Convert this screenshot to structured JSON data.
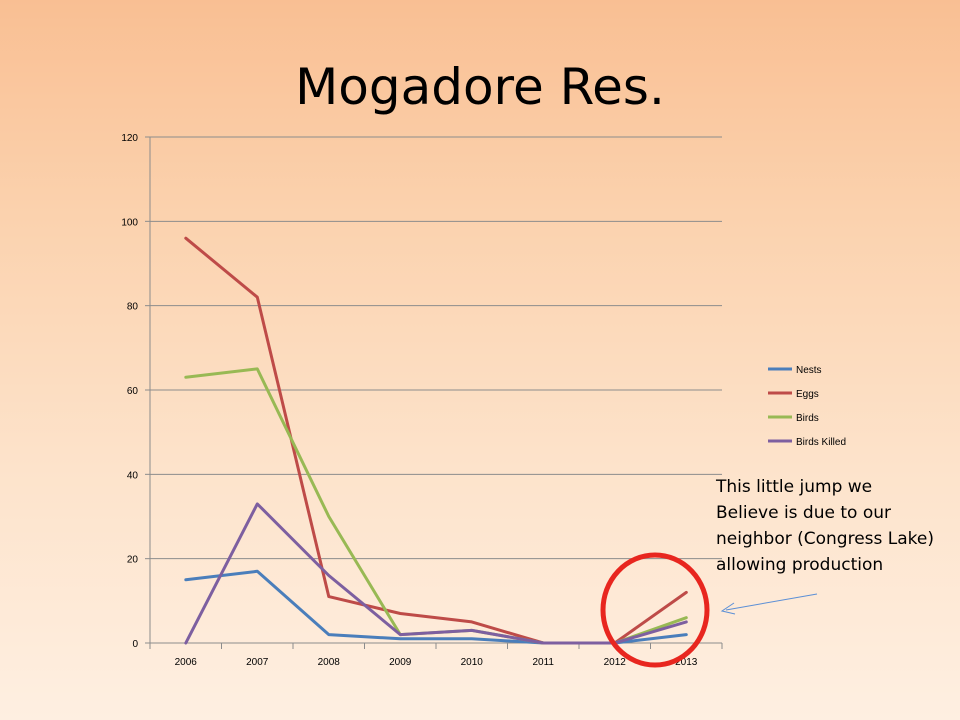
{
  "slide": {
    "title": "Mogadore Res.",
    "annotation_lines": [
      "This little jump we",
      "Believe is due to our",
      "neighbor (Congress Lake)",
      "allowing production"
    ]
  },
  "colors": {
    "Nests": "#4a7ebb",
    "Eggs": "#be4b48",
    "Birds": "#98b954",
    "Birds Killed": "#7d5fa0",
    "highlight_circle": "#e8261f",
    "arrow": "#5b8fd6",
    "gridline": "#8c8c8c"
  },
  "chart_data": {
    "type": "line",
    "title": "",
    "xlabel": "",
    "ylabel": "",
    "categories": [
      "2006",
      "2007",
      "2008",
      "2009",
      "2010",
      "2011",
      "2012",
      "2013"
    ],
    "ylim": [
      0,
      120
    ],
    "yticks": [
      0,
      20,
      40,
      60,
      80,
      100,
      120
    ],
    "grid": true,
    "legend_position": "right",
    "series": [
      {
        "name": "Nests",
        "values": [
          15,
          17,
          2,
          1,
          1,
          0,
          0,
          2
        ]
      },
      {
        "name": "Eggs",
        "values": [
          96,
          82,
          11,
          7,
          5,
          0,
          0,
          12
        ]
      },
      {
        "name": "Birds",
        "values": [
          63,
          65,
          30,
          2,
          3,
          0,
          0,
          6
        ]
      },
      {
        "name": "Birds Killed",
        "values": [
          0,
          33,
          16,
          2,
          3,
          0,
          0,
          5
        ]
      }
    ]
  }
}
